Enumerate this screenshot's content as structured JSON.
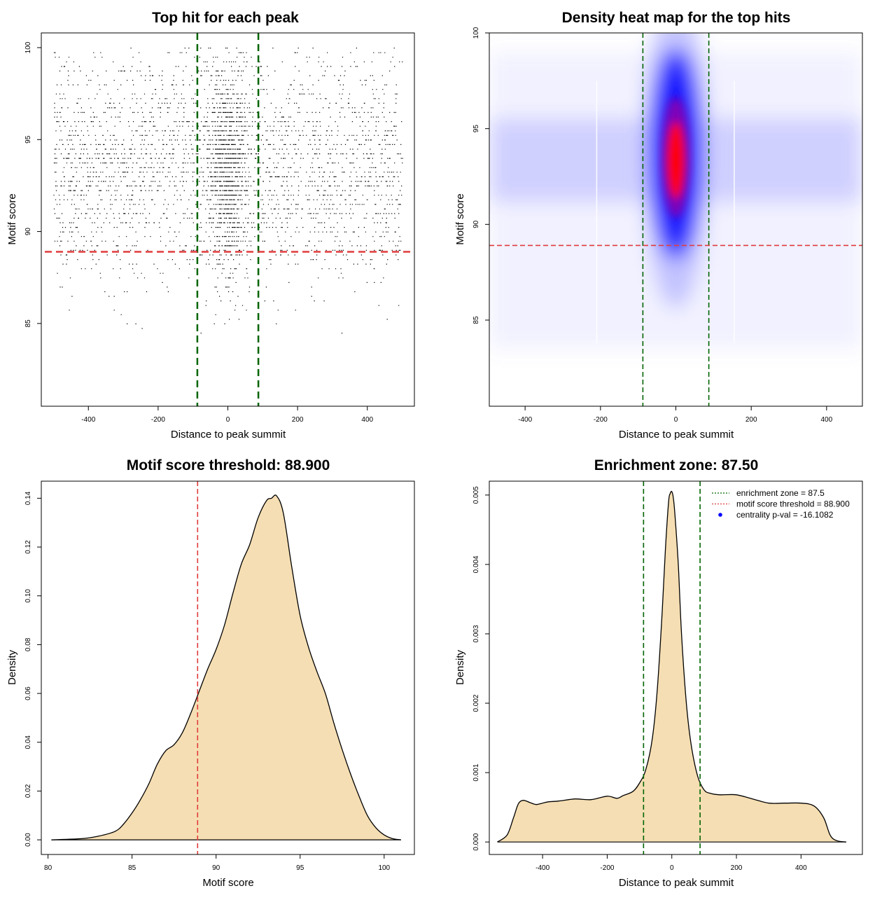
{
  "chart_data": [
    {
      "id": "scatter",
      "type": "scatter",
      "title": "Top hit for each peak",
      "xlabel": "Distance to peak summit",
      "ylabel": "Motif score",
      "xlim": [
        -535,
        535
      ],
      "ylim": [
        80.5,
        100.8
      ],
      "xticks": [
        -400,
        -200,
        0,
        200,
        400
      ],
      "yticks": [
        85,
        90,
        95,
        100
      ],
      "grid": false,
      "vlines": [
        -87.5,
        87.5
      ],
      "hline": 88.9,
      "vline_color": "#006400",
      "hline_color": "#e03c3c",
      "point_color": "#000000",
      "x_range_of_points": [
        -500,
        500
      ],
      "y_peak": 93.5,
      "approx_point_count": 14000,
      "central_enrichment": "dense vertical band of points within about ±50 of the summit"
    },
    {
      "id": "heatmap",
      "type": "heatmap",
      "title": "Density heat map for the top hits",
      "xlabel": "Distance to peak summit",
      "ylabel": "Motif score",
      "xlim": [
        -495,
        495
      ],
      "ylim": [
        80.5,
        100.0
      ],
      "xticks": [
        -400,
        -200,
        0,
        200,
        400
      ],
      "yticks": [
        85,
        90,
        95,
        100
      ],
      "grid": false,
      "vlines": [
        -87.5,
        87.5
      ],
      "hline": 88.9,
      "vline_color": "#006400",
      "hline_color": "#e03c3c",
      "colors": [
        "#ffffff",
        "#0000ff",
        "#ff0000"
      ],
      "hotspot": {
        "x": 0,
        "y": 93.5
      }
    },
    {
      "id": "score_density",
      "type": "area",
      "title": "Motif score threshold: 88.900",
      "xlabel": "Motif score",
      "ylabel": "Density",
      "xlim": [
        79.6,
        101.8
      ],
      "ylim": [
        -0.006,
        0.147
      ],
      "xticks": [
        80,
        85,
        90,
        95,
        100
      ],
      "yticks": [
        0.0,
        0.02,
        0.04,
        0.06,
        0.08,
        0.1,
        0.12,
        0.14
      ],
      "ytick_labels": [
        "0.00",
        "0.02",
        "0.04",
        "0.06",
        "0.08",
        "0.10",
        "0.12",
        "0.14"
      ],
      "fill_color": "#f5deb3",
      "vline": 88.9,
      "vline_color": "#e03c3c",
      "x": [
        80.2,
        82.0,
        83.0,
        84.0,
        84.5,
        85.0,
        85.5,
        86.0,
        86.5,
        87.0,
        87.5,
        88.0,
        88.5,
        89.0,
        89.5,
        90.0,
        90.5,
        91.0,
        91.5,
        92.0,
        92.5,
        93.0,
        93.3,
        93.6,
        94.0,
        94.5,
        95.0,
        95.5,
        96.0,
        96.5,
        97.0,
        97.5,
        98.0,
        98.5,
        99.0,
        99.5,
        100.0,
        100.5,
        101.0
      ],
      "values": [
        0.0,
        0.0005,
        0.0015,
        0.0035,
        0.0065,
        0.011,
        0.0165,
        0.023,
        0.031,
        0.0365,
        0.039,
        0.044,
        0.052,
        0.061,
        0.07,
        0.078,
        0.088,
        0.101,
        0.113,
        0.121,
        0.132,
        0.139,
        0.14,
        0.141,
        0.134,
        0.112,
        0.092,
        0.079,
        0.069,
        0.06,
        0.048,
        0.037,
        0.027,
        0.018,
        0.01,
        0.005,
        0.002,
        0.0005,
        0.0
      ]
    },
    {
      "id": "distance_density",
      "type": "area",
      "title": "Enrichment zone: 87.50",
      "xlabel": "Distance to peak summit",
      "ylabel": "Density",
      "xlim": [
        -565,
        590
      ],
      "ylim": [
        -0.00018,
        0.0052
      ],
      "xticks": [
        -400,
        -200,
        0,
        200,
        400
      ],
      "yticks": [
        0.0,
        0.001,
        0.002,
        0.003,
        0.004,
        0.005
      ],
      "ytick_labels": [
        "0.000",
        "0.001",
        "0.002",
        "0.003",
        "0.004",
        "0.005"
      ],
      "fill_color": "#f5deb3",
      "vlines": [
        -87.5,
        87.5
      ],
      "vline_color": "#006400",
      "x": [
        -540,
        -510,
        -490,
        -475,
        -460,
        -440,
        -420,
        -400,
        -380,
        -350,
        -300,
        -250,
        -200,
        -170,
        -150,
        -120,
        -100,
        -80,
        -60,
        -45,
        -30,
        -20,
        -10,
        -5,
        0,
        5,
        10,
        20,
        30,
        45,
        60,
        80,
        100,
        120,
        150,
        200,
        250,
        300,
        350,
        400,
        440,
        470,
        490,
        510,
        540
      ],
      "values": [
        0.0,
        0.0001,
        0.00035,
        0.00055,
        0.0006,
        0.00057,
        0.00054,
        0.00056,
        0.00058,
        0.00059,
        0.00062,
        0.00061,
        0.00066,
        0.00063,
        0.00067,
        0.00073,
        0.00085,
        0.00105,
        0.0015,
        0.0022,
        0.0033,
        0.0042,
        0.0049,
        0.00502,
        0.00505,
        0.00495,
        0.0047,
        0.004,
        0.003,
        0.002,
        0.0014,
        0.00095,
        0.00075,
        0.0007,
        0.00068,
        0.00068,
        0.00062,
        0.00056,
        0.00056,
        0.00056,
        0.00052,
        0.00035,
        0.0001,
        2e-05,
        0.0
      ],
      "legend": {
        "position": "top-right",
        "entries": [
          {
            "label": "enrichment zone = 87.5",
            "color": "#006400",
            "style": "dotted-line"
          },
          {
            "label": "motif score threshold = 88.900",
            "color": "#e03c3c",
            "style": "dotted-line"
          },
          {
            "label": "centrality p-val = -16.1082",
            "color": "#0000ff",
            "style": "point"
          }
        ]
      }
    }
  ]
}
